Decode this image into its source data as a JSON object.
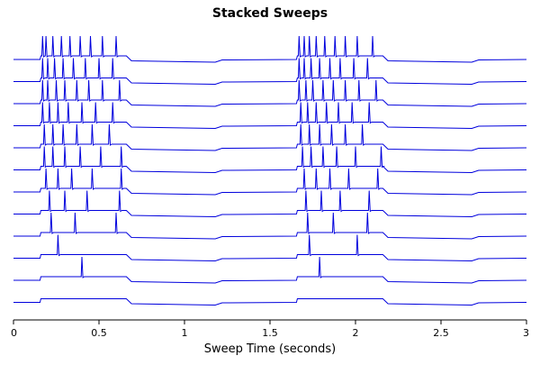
{
  "chart_data": {
    "type": "line",
    "title": "Stacked Sweeps",
    "xlabel": "Sweep Time (seconds)",
    "ylabel": "",
    "xlim": [
      0,
      3
    ],
    "xticks": [
      0,
      0.5,
      1,
      1.5,
      2,
      2.5,
      3
    ],
    "xtick_labels": [
      "0",
      "0.5",
      "1",
      "1.5",
      "2",
      "2.5",
      "3"
    ],
    "y_axis_visible": false,
    "grid": false,
    "legend": "none",
    "stacked": true,
    "line_color": "#0000dd",
    "step_windows": [
      {
        "start": 0.16,
        "end": 0.66
      },
      {
        "start": 1.66,
        "end": 2.16
      }
    ],
    "series": [
      {
        "spikes_a": [],
        "spikes_b": []
      },
      {
        "spikes_a": [
          0.4
        ],
        "spikes_b": [
          1.79
        ]
      },
      {
        "spikes_a": [
          0.26
        ],
        "spikes_b": [
          1.73,
          2.01
        ]
      },
      {
        "spikes_a": [
          0.22,
          0.36,
          0.6
        ],
        "spikes_b": [
          1.72,
          1.87,
          2.07
        ]
      },
      {
        "spikes_a": [
          0.21,
          0.3,
          0.43,
          0.62
        ],
        "spikes_b": [
          1.71,
          1.8,
          1.91,
          2.08
        ]
      },
      {
        "spikes_a": [
          0.19,
          0.26,
          0.34,
          0.46,
          0.63
        ],
        "spikes_b": [
          1.7,
          1.77,
          1.85,
          1.96,
          2.13
        ]
      },
      {
        "spikes_a": [
          0.18,
          0.23,
          0.3,
          0.39,
          0.51,
          0.63
        ],
        "spikes_b": [
          1.69,
          1.74,
          1.81,
          1.89,
          2.0,
          2.15
        ]
      },
      {
        "spikes_a": [
          0.18,
          0.23,
          0.29,
          0.37,
          0.46,
          0.56
        ],
        "spikes_b": [
          1.68,
          1.73,
          1.79,
          1.86,
          1.94,
          2.04
        ]
      },
      {
        "spikes_a": [
          0.17,
          0.21,
          0.26,
          0.32,
          0.4,
          0.48,
          0.58
        ],
        "spikes_b": [
          1.68,
          1.72,
          1.77,
          1.83,
          1.9,
          1.98,
          2.08
        ]
      },
      {
        "spikes_a": [
          0.17,
          0.2,
          0.25,
          0.3,
          0.37,
          0.44,
          0.52,
          0.62
        ],
        "spikes_b": [
          1.67,
          1.71,
          1.75,
          1.81,
          1.87,
          1.94,
          2.02,
          2.12
        ]
      },
      {
        "spikes_a": [
          0.17,
          0.2,
          0.24,
          0.29,
          0.35,
          0.42,
          0.5,
          0.58
        ],
        "spikes_b": [
          1.67,
          1.7,
          1.74,
          1.79,
          1.85,
          1.91,
          1.99,
          2.07
        ]
      },
      {
        "spikes_a": [
          0.17,
          0.19,
          0.23,
          0.28,
          0.33,
          0.39,
          0.45,
          0.52,
          0.6
        ],
        "spikes_b": [
          1.67,
          1.7,
          1.73,
          1.77,
          1.82,
          1.88,
          1.94,
          2.01,
          2.1
        ]
      }
    ]
  }
}
